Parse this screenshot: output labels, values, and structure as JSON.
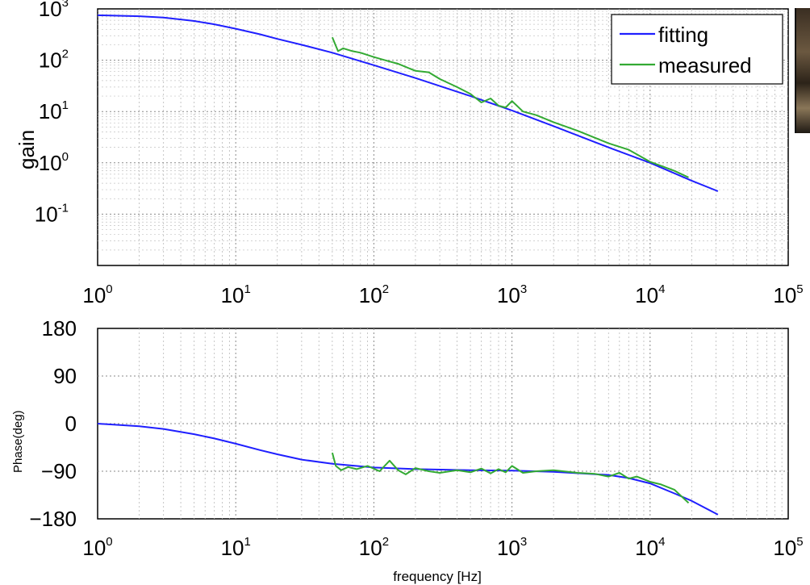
{
  "chart_data": [
    {
      "type": "line",
      "title": "",
      "xlabel": "",
      "ylabel": "gain",
      "x_scale": "log",
      "y_scale": "log",
      "xlim": [
        1,
        100000
      ],
      "ylim": [
        0.01,
        1000
      ],
      "x_ticks": [
        1,
        10,
        100,
        1000,
        10000,
        100000
      ],
      "x_tick_labels": [
        {
          "base": "10",
          "exp": "0"
        },
        {
          "base": "10",
          "exp": "1"
        },
        {
          "base": "10",
          "exp": "2"
        },
        {
          "base": "10",
          "exp": "3"
        },
        {
          "base": "10",
          "exp": "4"
        },
        {
          "base": "10",
          "exp": "5"
        }
      ],
      "y_ticks": [
        0.1,
        1,
        10,
        100,
        1000
      ],
      "y_tick_labels": [
        {
          "base": "10",
          "exp": "-1"
        },
        {
          "base": "10",
          "exp": "0"
        },
        {
          "base": "10",
          "exp": "1"
        },
        {
          "base": "10",
          "exp": "2"
        },
        {
          "base": "10",
          "exp": "3"
        }
      ],
      "grid": true,
      "legend": "top-right",
      "series": [
        {
          "name": "fitting",
          "color": "#1f1fff",
          "x": [
            1,
            2,
            3,
            5,
            7,
            10,
            15,
            20,
            30,
            50,
            100,
            200,
            500,
            1000,
            2000,
            5000,
            10000,
            20000,
            31000
          ],
          "y": [
            750,
            720,
            680,
            580,
            500,
            410,
            320,
            260,
            200,
            140,
            80,
            45,
            20,
            10.5,
            5.2,
            2.0,
            1.0,
            0.45,
            0.28
          ]
        },
        {
          "name": "measured",
          "color": "#33aa33",
          "x": [
            50,
            55,
            60,
            70,
            80,
            100,
            120,
            150,
            200,
            250,
            300,
            400,
            500,
            600,
            700,
            800,
            900,
            1000,
            1200,
            1500,
            2000,
            3000,
            5000,
            7000,
            10000,
            15000,
            19000
          ],
          "y": [
            280,
            150,
            170,
            150,
            140,
            115,
            100,
            85,
            62,
            58,
            43,
            30,
            22,
            15,
            18,
            13,
            12,
            16,
            10,
            8.5,
            6.2,
            4.2,
            2.4,
            1.8,
            1.05,
            0.7,
            0.52
          ]
        }
      ]
    },
    {
      "type": "line",
      "title": "",
      "xlabel": "frequency [Hz]",
      "ylabel": "Phase(deg)",
      "x_scale": "log",
      "y_scale": "linear",
      "xlim": [
        1,
        100000
      ],
      "ylim": [
        -180,
        180
      ],
      "x_ticks": [
        1,
        10,
        100,
        1000,
        10000,
        100000
      ],
      "x_tick_labels": [
        {
          "base": "10",
          "exp": "0"
        },
        {
          "base": "10",
          "exp": "1"
        },
        {
          "base": "10",
          "exp": "2"
        },
        {
          "base": "10",
          "exp": "3"
        },
        {
          "base": "10",
          "exp": "4"
        },
        {
          "base": "10",
          "exp": "5"
        }
      ],
      "y_ticks": [
        180,
        90,
        0,
        -90,
        -180
      ],
      "y_tick_labels": [
        "180",
        "90",
        "0",
        "−90",
        "−180"
      ],
      "grid": true,
      "series": [
        {
          "name": "fitting",
          "color": "#1f1fff",
          "x": [
            1,
            2,
            3,
            5,
            7,
            10,
            15,
            20,
            30,
            50,
            100,
            200,
            500,
            1000,
            2000,
            5000,
            7000,
            10000,
            15000,
            20000,
            31000
          ],
          "y": [
            0,
            -5,
            -10,
            -20,
            -28,
            -38,
            -50,
            -58,
            -68,
            -76,
            -83,
            -86,
            -88,
            -89,
            -91,
            -97,
            -103,
            -113,
            -132,
            -146,
            -172
          ]
        },
        {
          "name": "measured",
          "color": "#33aa33",
          "x": [
            50,
            53,
            58,
            65,
            75,
            90,
            110,
            130,
            150,
            170,
            200,
            250,
            300,
            400,
            500,
            600,
            700,
            800,
            900,
            1000,
            1200,
            1500,
            2000,
            3000,
            4000,
            5000,
            6000,
            7000,
            8000,
            10000,
            12000,
            15000,
            19000
          ],
          "y": [
            -55,
            -80,
            -88,
            -82,
            -86,
            -80,
            -90,
            -70,
            -88,
            -96,
            -84,
            -90,
            -93,
            -88,
            -92,
            -85,
            -94,
            -86,
            -92,
            -80,
            -93,
            -90,
            -88,
            -93,
            -95,
            -100,
            -93,
            -104,
            -100,
            -110,
            -115,
            -125,
            -150
          ]
        }
      ]
    }
  ]
}
